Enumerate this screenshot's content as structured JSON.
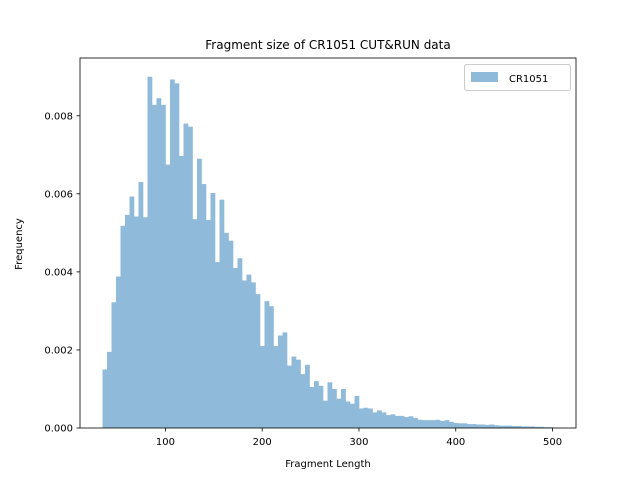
{
  "chart_data": {
    "type": "bar",
    "title": "Fragment size of CR1051 CUT&RUN data",
    "xlabel": "Fragment Length",
    "ylabel": "Frequency",
    "xlim": [
      11.75,
      524.25
    ],
    "ylim": [
      0,
      0.00948
    ],
    "x_ticks": [
      100,
      200,
      300,
      400,
      500
    ],
    "y_ticks": [
      0.0,
      0.002,
      0.004,
      0.006,
      0.008
    ],
    "y_tick_labels": [
      "0.000",
      "0.002",
      "0.004",
      "0.006",
      "0.008"
    ],
    "legend_position": "top-right",
    "grid": false,
    "color": "#8fbad9",
    "series": [
      {
        "name": "CR1051",
        "bin_start": 35,
        "bin_width": 4.65,
        "values": [
          0.0015,
          0.00195,
          0.00322,
          0.00388,
          0.00518,
          0.00546,
          0.00593,
          0.00542,
          0.0063,
          0.0054,
          0.009,
          0.00828,
          0.00845,
          0.00828,
          0.00675,
          0.00893,
          0.00883,
          0.00697,
          0.0078,
          0.00772,
          0.00535,
          0.0069,
          0.00625,
          0.00533,
          0.00602,
          0.00425,
          0.00585,
          0.005,
          0.0048,
          0.0041,
          0.00435,
          0.00378,
          0.00393,
          0.00373,
          0.00343,
          0.0021,
          0.00325,
          0.00312,
          0.0021,
          0.00237,
          0.00245,
          0.0016,
          0.00183,
          0.00175,
          0.00138,
          0.00162,
          0.00105,
          0.0012,
          0.00108,
          0.0007,
          0.00117,
          0.001,
          0.00075,
          0.001,
          0.00068,
          0.00062,
          0.00082,
          0.0005,
          0.00052,
          0.0005,
          0.0004,
          0.00045,
          0.0004,
          0.00033,
          0.00035,
          0.00031,
          0.00031,
          0.00028,
          0.0003,
          0.00026,
          0.00021,
          0.0002,
          0.0002,
          0.0002,
          0.00021,
          0.00018,
          0.0002,
          0.00016,
          0.00013,
          0.00012,
          0.00012,
          0.0001,
          0.0001,
          9e-05,
          9e-05,
          8e-05,
          9e-05,
          7e-05,
          6e-05,
          6e-05,
          6e-05,
          5e-05,
          5e-05,
          4e-05,
          4e-05,
          4e-05,
          3e-05,
          3e-05,
          2e-05,
          2e-05
        ]
      }
    ]
  }
}
